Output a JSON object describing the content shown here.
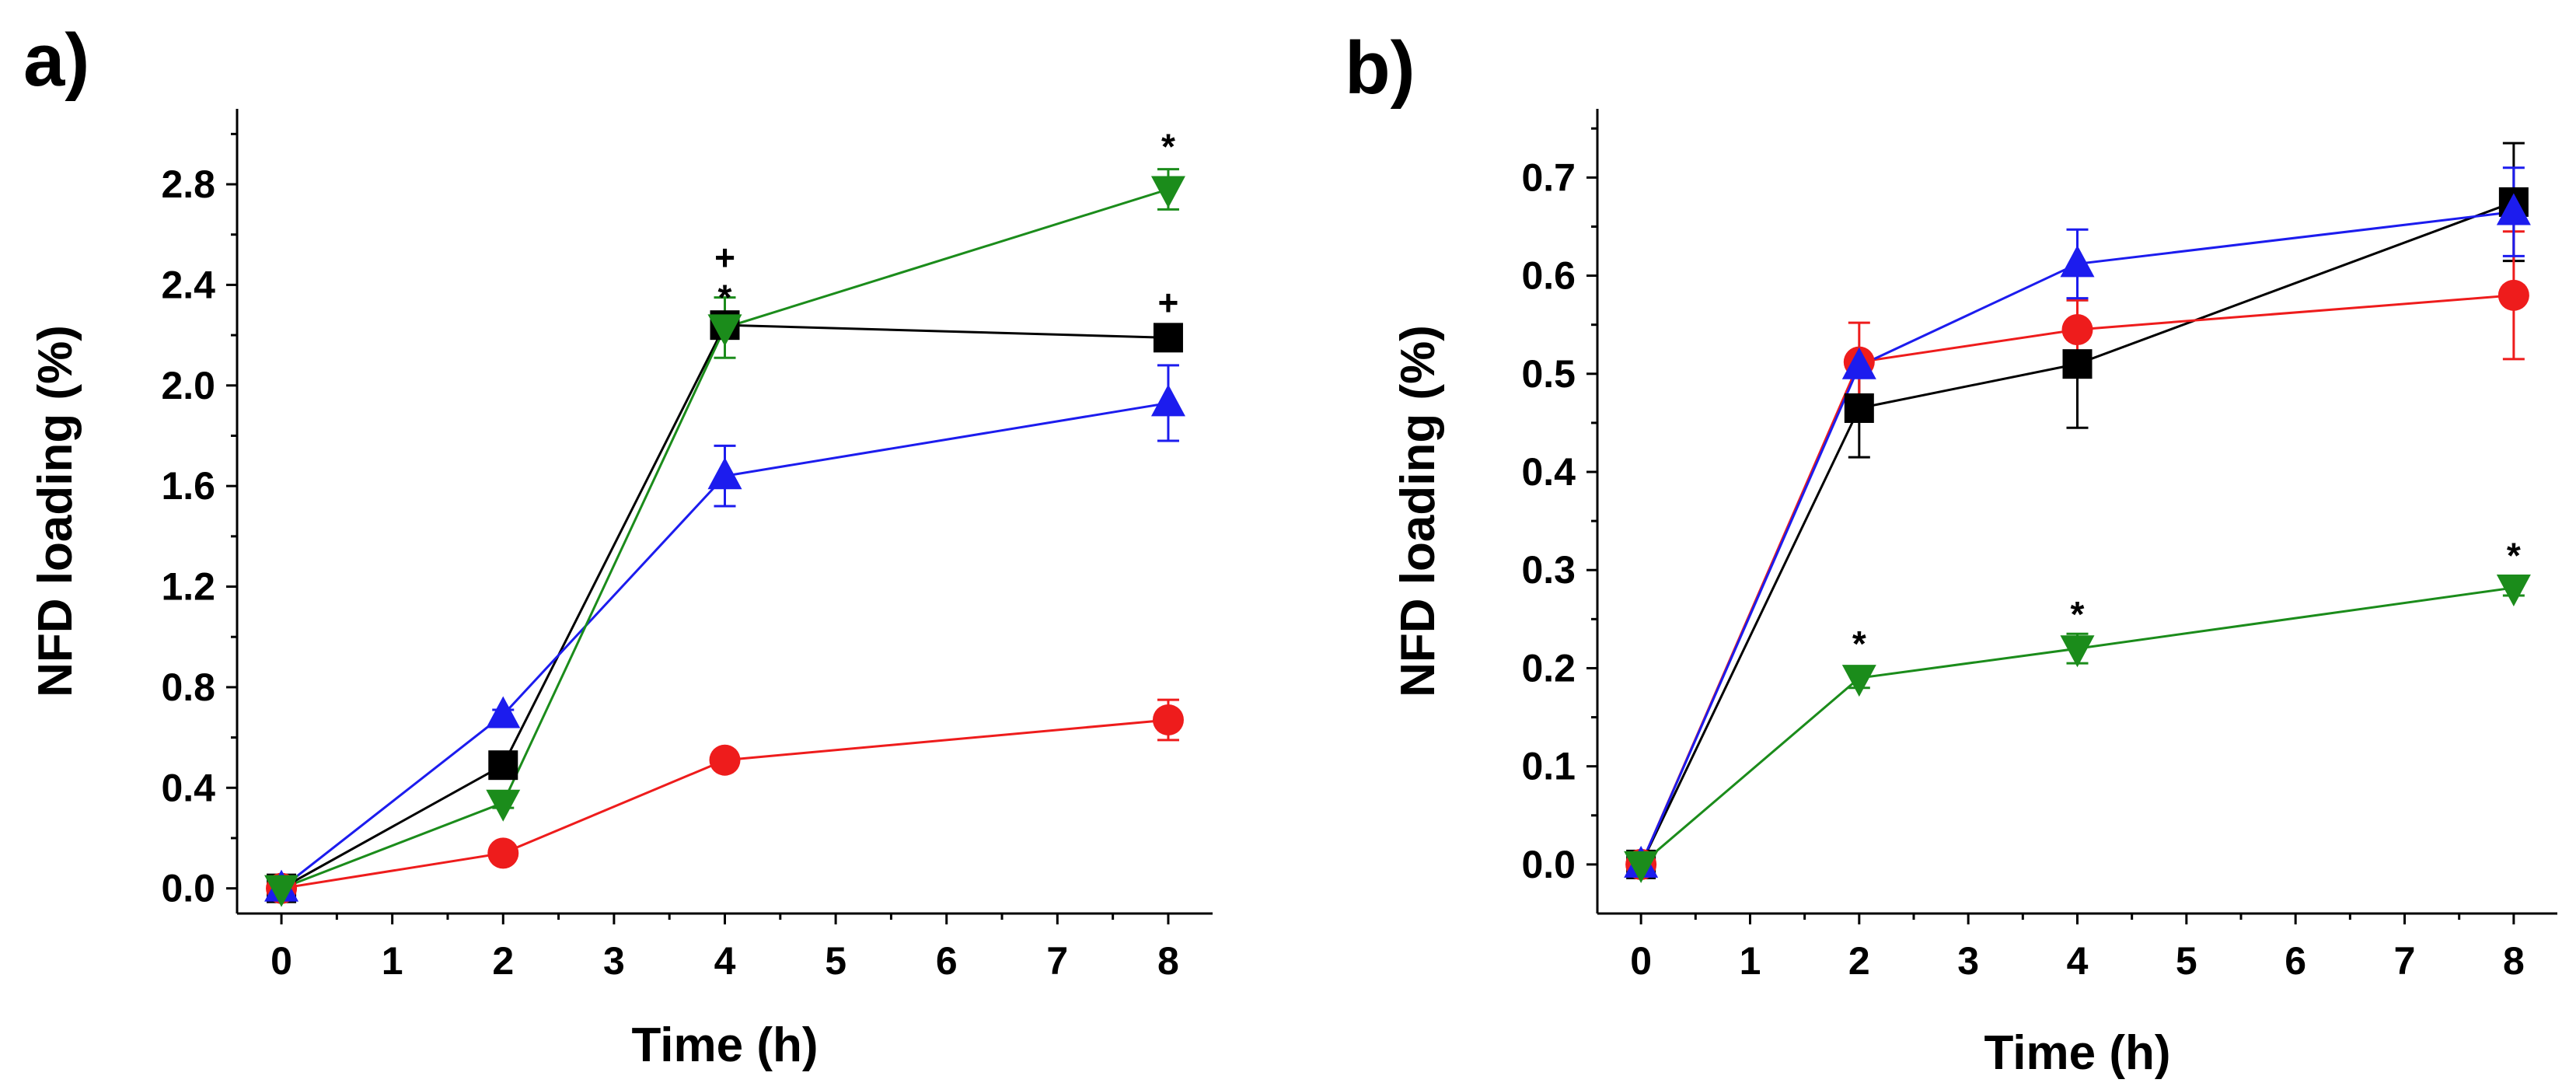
{
  "panels": [
    "a)",
    "b)"
  ],
  "chart_data": [
    {
      "type": "line",
      "panel": "a)",
      "xlabel": "Time (h)",
      "ylabel": "NFD loading (%)",
      "xlim": [
        -0.4,
        8.4
      ],
      "ylim": [
        -0.1,
        3.1
      ],
      "xticks": [
        "0",
        "1",
        "2",
        "3",
        "4",
        "5",
        "6",
        "7",
        "8"
      ],
      "yticks": [
        "0.0",
        "0.4",
        "0.8",
        "1.2",
        "1.6",
        "2.0",
        "2.4",
        "2.8"
      ],
      "grid": false,
      "series": [
        {
          "marker": "square",
          "color": "#000000",
          "x": [
            0,
            2,
            4,
            8
          ],
          "y": [
            0.0,
            0.49,
            2.24,
            2.19
          ],
          "err": [
            0,
            0.02,
            0.04,
            0.04
          ]
        },
        {
          "marker": "circle",
          "color": "#ee1c1c",
          "x": [
            0,
            2,
            4,
            8
          ],
          "y": [
            0.0,
            0.14,
            0.51,
            0.67
          ],
          "err": [
            0,
            0.01,
            0.02,
            0.08
          ]
        },
        {
          "marker": "triangle-up",
          "color": "#1c1cee",
          "x": [
            0,
            2,
            4,
            8
          ],
          "y": [
            0.0,
            0.69,
            1.64,
            1.93
          ],
          "err": [
            0,
            0.02,
            0.12,
            0.15
          ]
        },
        {
          "marker": "triangle-down",
          "color": "#1b8c1b",
          "x": [
            0,
            2,
            4,
            8
          ],
          "y": [
            0.0,
            0.34,
            2.23,
            2.78
          ],
          "err": [
            0,
            0.02,
            0.12,
            0.08
          ]
        }
      ],
      "annotations": [
        {
          "text": "+",
          "x": 4,
          "y": 2.51
        },
        {
          "text": "*",
          "x": 4,
          "y": 2.35
        },
        {
          "text": "+",
          "x": 8,
          "y": 2.33
        },
        {
          "text": "*",
          "x": 8,
          "y": 2.95
        }
      ]
    },
    {
      "type": "line",
      "panel": "b)",
      "xlabel": "Time (h)",
      "ylabel": "NFD loading (%)",
      "xlim": [
        -0.4,
        8.4
      ],
      "ylim": [
        -0.05,
        0.77
      ],
      "xticks": [
        "0",
        "1",
        "2",
        "3",
        "4",
        "5",
        "6",
        "7",
        "8"
      ],
      "yticks": [
        "0.0",
        "0.1",
        "0.2",
        "0.3",
        "0.4",
        "0.5",
        "0.6",
        "0.7"
      ],
      "grid": false,
      "series": [
        {
          "marker": "square",
          "color": "#000000",
          "x": [
            0,
            2,
            4,
            8
          ],
          "y": [
            0.0,
            0.465,
            0.51,
            0.675
          ],
          "err": [
            0,
            0.05,
            0.065,
            0.06
          ]
        },
        {
          "marker": "circle",
          "color": "#ee1c1c",
          "x": [
            0,
            2,
            4,
            8
          ],
          "y": [
            0.0,
            0.512,
            0.545,
            0.58
          ],
          "err": [
            0,
            0.04,
            0.03,
            0.065
          ]
        },
        {
          "marker": "triangle-up",
          "color": "#1c1cee",
          "x": [
            0,
            2,
            4,
            8
          ],
          "y": [
            0.0,
            0.508,
            0.612,
            0.665
          ],
          "err": [
            0,
            0.01,
            0.035,
            0.045
          ]
        },
        {
          "marker": "triangle-down",
          "color": "#1b8c1b",
          "x": [
            0,
            2,
            4,
            8
          ],
          "y": [
            0.0,
            0.19,
            0.22,
            0.282
          ],
          "err": [
            0,
            0.01,
            0.015,
            0.008
          ]
        }
      ],
      "annotations": [
        {
          "text": "*",
          "x": 2,
          "y": 0.225
        },
        {
          "text": "*",
          "x": 4,
          "y": 0.255
        },
        {
          "text": "*",
          "x": 8,
          "y": 0.315
        }
      ]
    }
  ]
}
